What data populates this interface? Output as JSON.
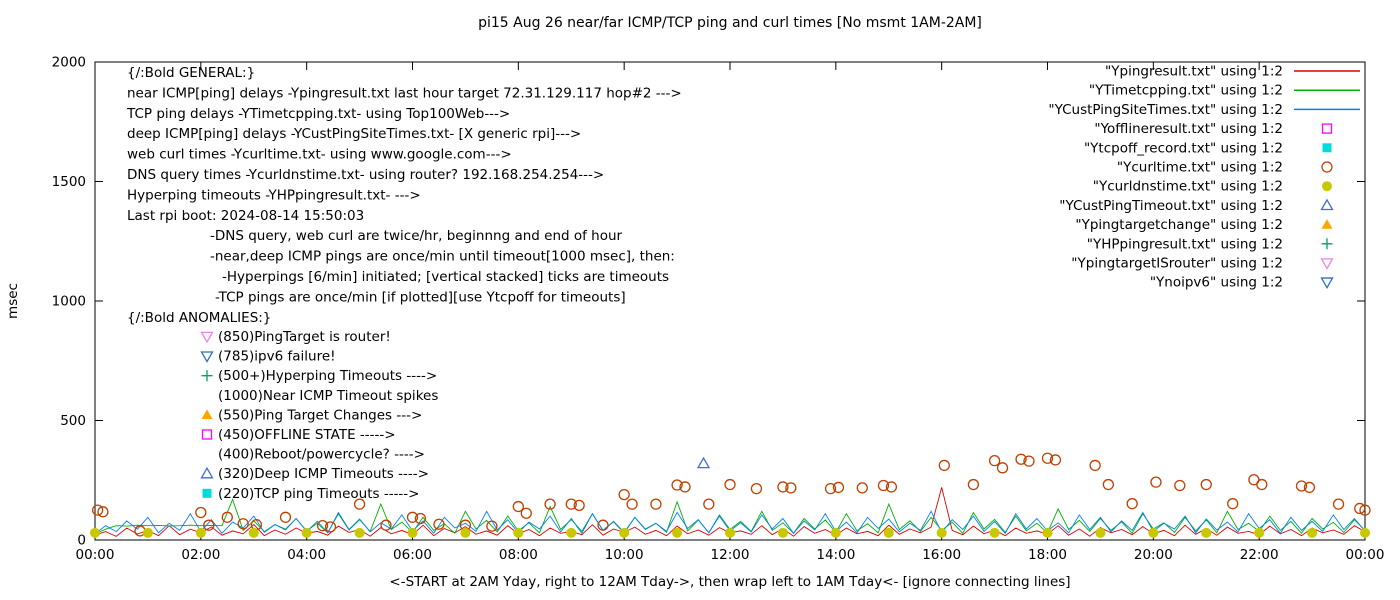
{
  "title": "pi15 Aug 26  near/far ICMP/TCP ping and curl times [No msmt 1AM-2AM]",
  "xlabel": "<-START at 2AM Yday, right to 12AM Tday->, then wrap left to 1AM Tday<- [ignore connecting lines]",
  "ylabel": "msec",
  "general": {
    "header": "{/:Bold GENERAL:}",
    "lines": [
      {
        "text": "near ICMP[ping] delays -Ypingresult.txt last hour target 72.31.129.117 hop#2 --->",
        "indent": 0
      },
      {
        "text": "TCP ping delays -YTimetcpping.txt- using Top100Web--->",
        "indent": 0
      },
      {
        "text": "deep ICMP[ping] delays -YCustPingSiteTimes.txt- [X generic rpi]--->",
        "indent": 0
      },
      {
        "text": "web curl times -Ycurltime.txt- using www.google.com--->",
        "indent": 0
      },
      {
        "text": "DNS query times -Ycurldnstime.txt- using router? 192.168.254.254--->",
        "indent": 0
      },
      {
        "text": "Hyperping timeouts -YHPpingresult.txt- --->",
        "indent": 0
      },
      {
        "text": "Last rpi boot: 2024-08-14 15:50:03",
        "indent": 0
      },
      {
        "text": "-DNS query, web curl are twice/hr, beginnng and end of hour",
        "indent": 83
      },
      {
        "text": "-near,deep ICMP pings are once/min until timeout[1000 msec], then:",
        "indent": 83
      },
      {
        "text": "-Hyperpings [6/min] initiated; [vertical stacked] ticks are timeouts",
        "indent": 95
      },
      {
        "text": "-TCP pings are once/min [if plotted][use Ytcpoff for timeouts]",
        "indent": 88
      }
    ]
  },
  "anomalies": {
    "header": "{/:Bold ANOMALIES:}",
    "items": [
      {
        "marker": "triangle-down-open",
        "color": "#ee82ee",
        "text": "(850)PingTarget is router!"
      },
      {
        "marker": "triangle-down-open",
        "color": "#2e6fbe",
        "text": "(785)ipv6 failure!"
      },
      {
        "marker": "plus",
        "color": "#00a060",
        "text": "(500+)Hyperping Timeouts ---->"
      },
      {
        "marker": null,
        "color": null,
        "text": "(1000)Near ICMP Timeout spikes"
      },
      {
        "marker": "triangle-up-filled",
        "color": "#ffa500",
        "text": "(550)Ping Target Changes --->"
      },
      {
        "marker": "square-open",
        "color": "#ff00ff",
        "text": "(450)OFFLINE STATE ----->"
      },
      {
        "marker": null,
        "color": null,
        "text": "(400)Reboot/powercycle? ---->"
      },
      {
        "marker": "triangle-up-open",
        "color": "#4169e1",
        "text": "(320)Deep ICMP Timeouts ---->"
      },
      {
        "marker": "square-filled",
        "color": "#00dcdc",
        "text": "(220)TCP ping Timeouts ----->"
      }
    ]
  },
  "legend": [
    {
      "label": "\"Ypingresult.txt\" using 1:2",
      "marker": "line",
      "color": "#e00000"
    },
    {
      "label": "\"YTimetcpping.txt\" using 1:2",
      "marker": "line",
      "color": "#00b000"
    },
    {
      "label": "\"YCustPingSiteTimes.txt\" using 1:2",
      "marker": "line",
      "color": "#0080ff"
    },
    {
      "label": "\"Yofflineresult.txt\" using 1:2",
      "marker": "square-open",
      "color": "#ff00ff"
    },
    {
      "label": "\"Ytcpoff_record.txt\" using 1:2",
      "marker": "square-filled",
      "color": "#00dcdc"
    },
    {
      "label": "\"Ycurltime.txt\" using 1:2",
      "marker": "circle-open",
      "color": "#c04000"
    },
    {
      "label": "\"Ycurldnstime.txt\" using 1:2",
      "marker": "circle-filled",
      "color": "#c8c800"
    },
    {
      "label": "\"YCustPingTimeout.txt\" using 1:2",
      "marker": "triangle-up-open",
      "color": "#4169e1"
    },
    {
      "label": "\"Ypingtargetchange\" using 1:2",
      "marker": "triangle-up-filled",
      "color": "#ffa500"
    },
    {
      "label": "\"YHPpingresult.txt\" using 1:2",
      "marker": "plus",
      "color": "#00a060"
    },
    {
      "label": "\"YpingtargetISrouter\" using 1:2",
      "marker": "triangle-down-open",
      "color": "#ee82ee"
    },
    {
      "label": "\"Ynoipv6\" using 1:2",
      "marker": "triangle-down-open",
      "color": "#2e6fbe"
    }
  ],
  "chart_data": {
    "type": "line",
    "xlim": [
      0,
      24
    ],
    "ylim": [
      0,
      2000
    ],
    "yticks": [
      0,
      500,
      1000,
      1500,
      2000
    ],
    "xticks": [
      {
        "v": 0,
        "label": "00:00"
      },
      {
        "v": 2,
        "label": "02:00"
      },
      {
        "v": 4,
        "label": "04:00"
      },
      {
        "v": 6,
        "label": "06:00"
      },
      {
        "v": 8,
        "label": "08:00"
      },
      {
        "v": 10,
        "label": "10:00"
      },
      {
        "v": 12,
        "label": "12:00"
      },
      {
        "v": 14,
        "label": "14:00"
      },
      {
        "v": 16,
        "label": "16:00"
      },
      {
        "v": 18,
        "label": "18:00"
      },
      {
        "v": 20,
        "label": "20:00"
      },
      {
        "v": 22,
        "label": "22:00"
      },
      {
        "v": 24,
        "label": "00:00"
      }
    ],
    "series": [
      {
        "name": "Ypingresult.txt",
        "type": "line",
        "color": "#e00000",
        "x0": 0,
        "dx": 0.2,
        "y": [
          20,
          35,
          15,
          50,
          25,
          40,
          18,
          60,
          22,
          45,
          30,
          55,
          20,
          38,
          26,
          65,
          18,
          42,
          24,
          50,
          28,
          36,
          20,
          58,
          32,
          44,
          16,
          52,
          26,
          40,
          22,
          62,
          18,
          48,
          30,
          56,
          24,
          38,
          20,
          60,
          26,
          44,
          18,
          50,
          28,
          36,
          22,
          64,
          20,
          46,
          32,
          54,
          24,
          40,
          18,
          58,
          26,
          42,
          20,
          52,
          30,
          38,
          24,
          60,
          22,
          48,
          16,
          56,
          28,
          44,
          20,
          50,
          26,
          36,
          18,
          62,
          24,
          46,
          30,
          54,
          220,
          40,
          22,
          58,
          26,
          42,
          18,
          50,
          28,
          38,
          24,
          60,
          20,
          46,
          16,
          52,
          30,
          44,
          22,
          56,
          26,
          40,
          18,
          62,
          24,
          48,
          20,
          54,
          28,
          36,
          22,
          58,
          26,
          44,
          18,
          50,
          30,
          42,
          24,
          60,
          35
        ]
      },
      {
        "name": "YTimetcpping.txt",
        "type": "line",
        "color": "#00b000",
        "x0": 0,
        "dx": 0.2,
        "y": [
          25,
          45,
          60,
          58,
          62,
          60,
          61,
          59,
          60,
          62,
          60,
          61,
          60,
          170,
          40,
          80,
          35,
          65,
          45,
          90,
          38,
          70,
          30,
          110,
          42,
          85,
          36,
          150,
          44,
          75,
          32,
          95,
          40,
          68,
          28,
          120,
          46,
          82,
          34,
          100,
          38,
          72,
          30,
          140,
          44,
          86,
          36,
          110,
          40,
          76,
          28,
          95,
          46,
          70,
          32,
          160,
          38,
          84,
          30,
          105,
          44,
          78,
          36,
          120,
          40,
          72,
          28,
          90,
          46,
          84,
          32,
          110,
          38,
          68,
          30,
          150,
          44,
          80,
          36,
          95,
          40,
          74,
          28,
          115,
          46,
          86,
          32,
          100,
          38,
          70,
          30,
          130,
          44,
          82,
          36,
          90,
          40,
          76,
          28,
          110,
          46,
          72,
          32,
          95,
          38,
          84,
          30,
          120,
          44,
          70,
          36,
          100,
          40,
          78,
          28,
          90,
          46,
          74,
          32,
          85,
          40
        ]
      },
      {
        "name": "YCustPingSiteTimes.txt",
        "type": "line",
        "color": "#0080ff",
        "x0": 0,
        "dx": 0.2,
        "y": [
          25,
          60,
          35,
          80,
          45,
          95,
          30,
          70,
          40,
          110,
          35,
          85,
          28,
          75,
          50,
          100,
          32,
          65,
          42,
          90,
          36,
          78,
          30,
          115,
          44,
          88,
          34,
          72,
          46,
          105,
          38,
          80,
          28,
          95,
          50,
          70,
          36,
          120,
          42,
          85,
          30,
          75,
          46,
          100,
          34,
          90,
          28,
          110,
          40,
          78,
          32,
          95,
          44,
          70,
          36,
          115,
          48,
          85,
          30,
          100,
          38,
          72,
          34,
          105,
          46,
          90,
          28,
          80,
          42,
          110,
          36,
          75,
          30,
          95,
          48,
          88,
          34,
          70,
          40,
          120,
          32,
          85,
          44,
          100,
          36,
          78,
          28,
          110,
          46,
          90,
          38,
          72,
          30,
          105,
          44,
          95,
          34,
          80,
          40,
          115,
          36,
          70,
          46,
          100,
          30,
          88,
          42,
          75,
          34,
          110,
          48,
          85,
          28,
          95,
          40,
          78,
          36,
          105,
          44,
          90,
          38
        ]
      },
      {
        "name": "Ycurltime.txt",
        "type": "scatter",
        "marker": "circle-open",
        "color": "#c04000",
        "points": [
          [
            0.05,
            125
          ],
          [
            0.15,
            118
          ],
          [
            0.85,
            38
          ],
          [
            2.0,
            115
          ],
          [
            2.15,
            62
          ],
          [
            2.5,
            95
          ],
          [
            2.8,
            68
          ],
          [
            3.05,
            64
          ],
          [
            3.6,
            95
          ],
          [
            4.3,
            60
          ],
          [
            4.45,
            55
          ],
          [
            5.0,
            150
          ],
          [
            5.5,
            62
          ],
          [
            6.0,
            95
          ],
          [
            6.15,
            90
          ],
          [
            6.5,
            66
          ],
          [
            7.0,
            62
          ],
          [
            7.5,
            58
          ],
          [
            8.0,
            140
          ],
          [
            8.15,
            112
          ],
          [
            8.6,
            150
          ],
          [
            9.0,
            150
          ],
          [
            9.15,
            145
          ],
          [
            9.6,
            62
          ],
          [
            10.0,
            190
          ],
          [
            10.15,
            150
          ],
          [
            10.6,
            150
          ],
          [
            11.0,
            230
          ],
          [
            11.15,
            222
          ],
          [
            11.6,
            150
          ],
          [
            12.0,
            232
          ],
          [
            12.5,
            215
          ],
          [
            13.0,
            222
          ],
          [
            13.15,
            218
          ],
          [
            13.9,
            215
          ],
          [
            14.05,
            220
          ],
          [
            14.5,
            218
          ],
          [
            14.9,
            228
          ],
          [
            15.05,
            222
          ],
          [
            16.05,
            312
          ],
          [
            16.6,
            232
          ],
          [
            17.0,
            332
          ],
          [
            17.15,
            302
          ],
          [
            17.5,
            338
          ],
          [
            17.65,
            330
          ],
          [
            18.0,
            342
          ],
          [
            18.15,
            335
          ],
          [
            18.9,
            312
          ],
          [
            19.15,
            232
          ],
          [
            19.6,
            152
          ],
          [
            20.05,
            242
          ],
          [
            20.5,
            228
          ],
          [
            21.0,
            232
          ],
          [
            21.5,
            152
          ],
          [
            21.9,
            252
          ],
          [
            22.05,
            232
          ],
          [
            22.8,
            226
          ],
          [
            22.95,
            220
          ],
          [
            23.5,
            150
          ],
          [
            23.9,
            132
          ],
          [
            24.0,
            125
          ]
        ]
      },
      {
        "name": "Ycurldnstime.txt",
        "type": "scatter",
        "marker": "circle-filled",
        "color": "#c8c800",
        "points": [
          [
            0,
            30
          ],
          [
            1,
            30
          ],
          [
            2,
            30
          ],
          [
            3,
            30
          ],
          [
            4,
            30
          ],
          [
            5,
            30
          ],
          [
            6,
            30
          ],
          [
            7,
            30
          ],
          [
            8,
            30
          ],
          [
            9,
            30
          ],
          [
            10,
            30
          ],
          [
            11,
            30
          ],
          [
            12,
            30
          ],
          [
            13,
            30
          ],
          [
            14,
            30
          ],
          [
            15,
            30
          ],
          [
            16,
            30
          ],
          [
            17,
            30
          ],
          [
            18,
            30
          ],
          [
            19,
            30
          ],
          [
            20,
            30
          ],
          [
            21,
            30
          ],
          [
            22,
            30
          ],
          [
            23,
            30
          ],
          [
            24,
            30
          ]
        ]
      },
      {
        "name": "YCustPingTimeout.txt",
        "type": "scatter",
        "marker": "triangle-up-open",
        "color": "#4169e1",
        "points": [
          [
            11.5,
            320
          ]
        ]
      }
    ]
  }
}
